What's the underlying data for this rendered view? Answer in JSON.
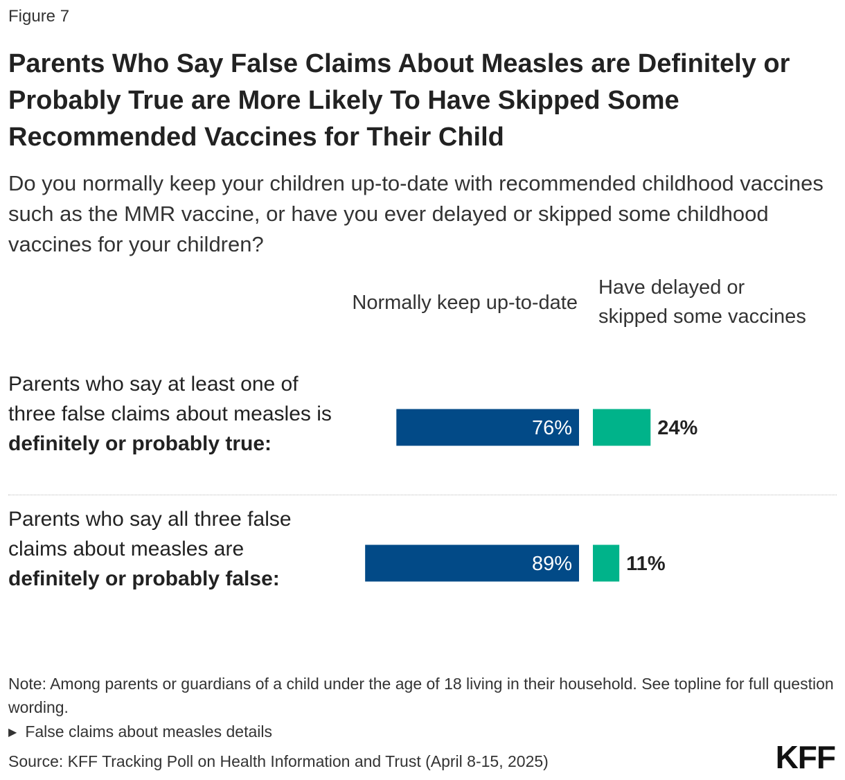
{
  "figure_label": "Figure 7",
  "note": "Note: Among parents or guardians of a child under the age of 18 living in their household. See topline for full question wording.",
  "details_label": "False claims about measles details",
  "source": "Source: KFF Tracking Poll on Health Information and Trust (April 8-15, 2025)",
  "logo": "KFF",
  "colors": {
    "series_up_to_date": "#024a87",
    "series_delayed": "#00b38a"
  },
  "chart_data": {
    "type": "bar",
    "orientation": "horizontal",
    "stacked": false,
    "title": "Parents Who Say False Claims About Measles are Definitely or Probably True are More Likely To Have Skipped Some Recommended Vaccines for Their Child",
    "subtitle": "Do you normally keep your children up-to-date with recommended childhood vaccines such as the MMR vaccine, or have you ever delayed or skipped some childhood vaccines for your children?",
    "categories": [
      {
        "pre": "Parents who say at least one of three false claims about measles is ",
        "bold": "definitely or probably true:"
      },
      {
        "pre": "Parents who say all three false claims about measles are ",
        "bold": "definitely or probably false:"
      }
    ],
    "series": [
      {
        "name": "Normally keep up-to-date",
        "values": [
          76,
          89
        ],
        "labels": [
          "76%",
          "89%"
        ],
        "color": "#024a87"
      },
      {
        "name": "Have delayed or skipped some vaccines",
        "values": [
          24,
          11
        ],
        "labels": [
          "24%",
          "11%"
        ],
        "color": "#00b38a"
      }
    ],
    "xlim": [
      0,
      100
    ]
  }
}
